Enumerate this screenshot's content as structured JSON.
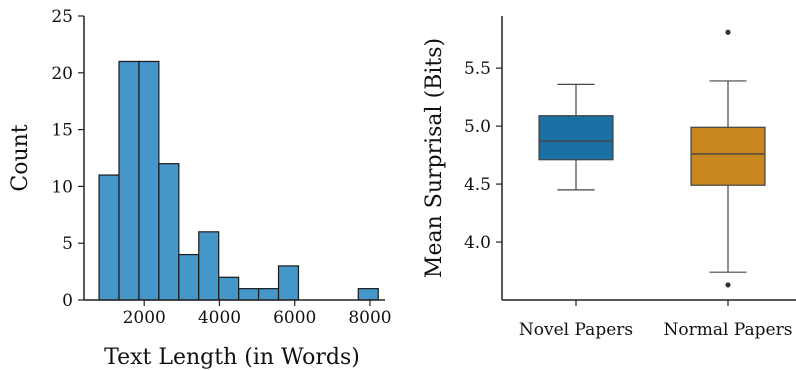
{
  "chart_data": [
    {
      "type": "bar",
      "subtype": "histogram",
      "xlabel": "Text Length (in Words)",
      "ylabel": "Count",
      "xlim": [
        400,
        8400
      ],
      "ylim": [
        0,
        25
      ],
      "xticks": [
        2000,
        4000,
        6000,
        8000
      ],
      "yticks": [
        0,
        5,
        10,
        15,
        20,
        25
      ],
      "bin_edges": [
        800,
        1330,
        1860,
        2390,
        2920,
        3450,
        3980,
        4510,
        5040,
        5570,
        6100,
        6630,
        7160,
        7690,
        8220
      ],
      "values": [
        11,
        21,
        21,
        12,
        4,
        6,
        2,
        1,
        1,
        3,
        0,
        0,
        0,
        1
      ],
      "bar_color": "#4596c9",
      "grid": false
    },
    {
      "type": "box",
      "xlabel": "",
      "ylabel": "Mean Surprisal (Bits)",
      "ylim": [
        3.5,
        5.95
      ],
      "yticks": [
        4.0,
        4.5,
        5.0,
        5.5
      ],
      "ytick_labels": [
        "4.0",
        "4.5",
        "5.0",
        "5.5"
      ],
      "categories": [
        "Novel Papers",
        "Normal Papers"
      ],
      "boxes": [
        {
          "name": "Novel Papers",
          "whisker_low": 4.45,
          "q1": 4.71,
          "median": 4.87,
          "q3": 5.09,
          "whisker_high": 5.36,
          "outliers": [],
          "color": "#1a6fa3"
        },
        {
          "name": "Normal Papers",
          "whisker_low": 3.74,
          "q1": 4.49,
          "median": 4.76,
          "q3": 4.99,
          "whisker_high": 5.39,
          "outliers": [
            5.81,
            3.63
          ],
          "color": "#c98720"
        }
      ],
      "grid": false
    }
  ]
}
